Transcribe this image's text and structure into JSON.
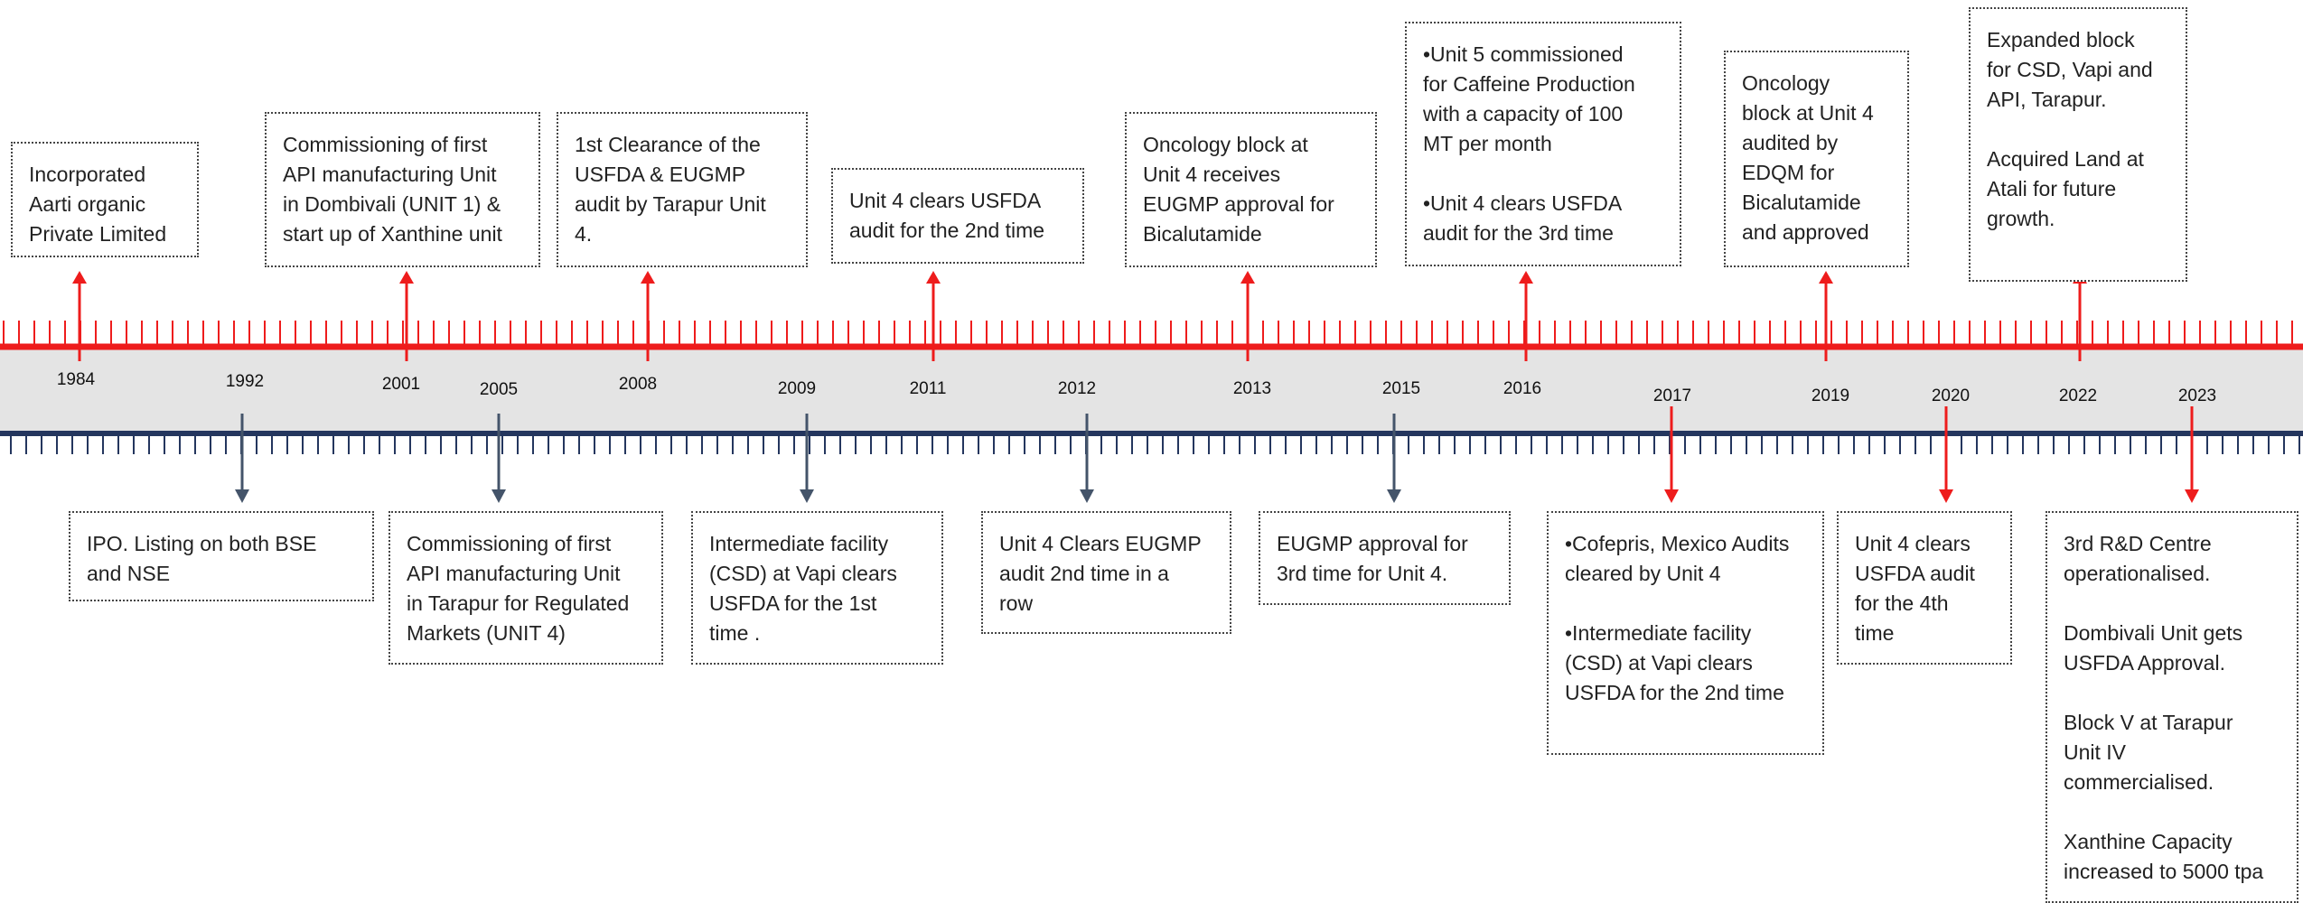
{
  "colors": {
    "red": "#ee1c1c",
    "navy": "#24365e",
    "grey_band": "#e4e4e4",
    "down_arrow": "#44546a"
  },
  "top_events": [
    {
      "year": "1984",
      "text": "Incorporated\nAarti organic\nPrivate Limited"
    },
    {
      "year": "2001",
      "text": "Commissioning of first\nAPI manufacturing Unit\nin Dombivali (UNIT 1) &\nstart up of Xanthine  unit"
    },
    {
      "year": "2008",
      "text": "1st  Clearance of the\nUSFDA & EUGMP\naudit by Tarapur Unit\n4."
    },
    {
      "year": "2011",
      "text": "Unit 4 clears USFDA\naudit for the 2nd time"
    },
    {
      "year": "2013",
      "text": "Oncology block  at\nUnit 4 receives\nEUGMP approval for\nBicalutamide"
    },
    {
      "year": "2016",
      "text": "•Unit 5 commissioned\nfor Caffeine Production\nwith a capacity of 100\nMT per month\n\n•Unit 4 clears USFDA\naudit for the 3rd time"
    },
    {
      "year": "2019",
      "text": "Oncology\nblock  at Unit 4\naudited by\nEDQM for\nBicalutamide\nand approved"
    },
    {
      "year": "2022",
      "text": "Expanded block\nfor CSD, Vapi and\nAPI, Tarapur.\n\nAcquired Land at\nAtali for future\ngrowth."
    }
  ],
  "bottom_events": [
    {
      "year": "1992",
      "text": "IPO. Listing on both BSE\nand NSE"
    },
    {
      "year": "2005",
      "text": "Commissioning of first\nAPI manufacturing Unit\nin Tarapur for Regulated\nMarkets (UNIT 4)"
    },
    {
      "year": "2009",
      "text": "Intermediate facility\n(CSD) at Vapi clears\nUSFDA for the 1st\ntime ."
    },
    {
      "year": "2012",
      "text": "Unit 4 Clears EUGMP\naudit 2nd time in a\nrow"
    },
    {
      "year": "2015",
      "text": "EUGMP approval for\n3rd time for Unit 4."
    },
    {
      "year": "2017",
      "text": "•Cofepris, Mexico Audits\ncleared by Unit 4\n\n•Intermediate facility\n(CSD) at Vapi clears\nUSFDA for the 2nd time"
    },
    {
      "year": "2020",
      "text": "Unit 4 clears\nUSFDA audit\nfor the 4th\ntime"
    },
    {
      "year": "2023",
      "text": "3rd R&D Centre\noperationalised.\n\nDombivali Unit gets\nUSFDA Approval.\n\nBlock V at Tarapur\nUnit IV\ncommercialised.\n\nXanthine Capacity\nincreased to 5000 tpa"
    }
  ]
}
